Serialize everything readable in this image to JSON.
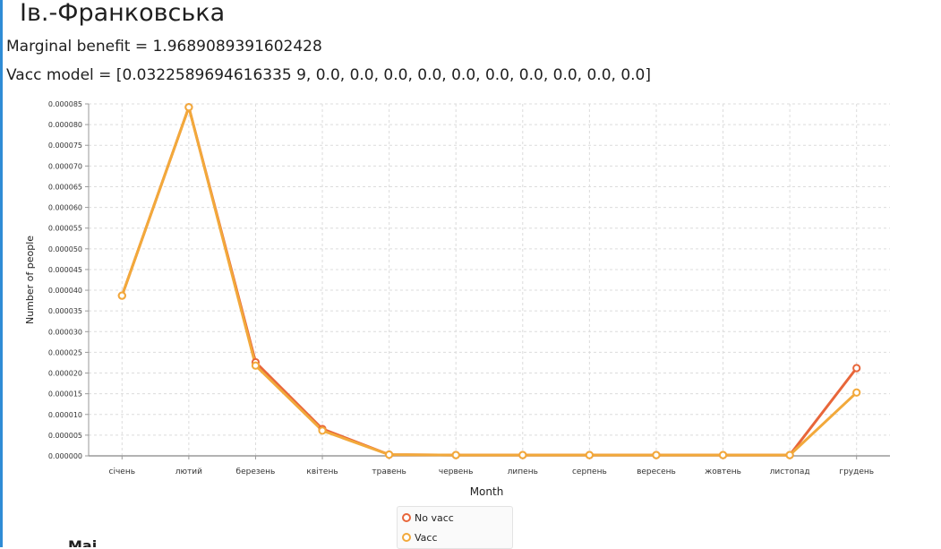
{
  "page": {
    "title": "Ів.-Франковська",
    "marginal_benefit": "Marginal benefit = 1.9689089391602428",
    "vacc_model": "Vacc model = [0.0322589694616335 9, 0.0, 0.0, 0.0, 0.0, 0.0, 0.0, 0.0, 0.0, 0.0, 0.0]",
    "bottom_text": "Mai"
  },
  "chart_data": {
    "type": "line",
    "title": "",
    "xlabel": "Month",
    "ylabel": "Number of people",
    "categories": [
      "січень",
      "лютий",
      "березень",
      "квітень",
      "травень",
      "червень",
      "липень",
      "серпень",
      "вересень",
      "жовтень",
      "листопад",
      "грудень"
    ],
    "ylim": [
      0,
      8.5e-05
    ],
    "yticks": [
      "0.000000",
      "0.000005",
      "0.000010",
      "0.000015",
      "0.000020",
      "0.000025",
      "0.000030",
      "0.000035",
      "0.000040",
      "0.000045",
      "0.000050",
      "0.000055",
      "0.000060",
      "0.000065",
      "0.000070",
      "0.000075",
      "0.000080",
      "0.000085"
    ],
    "grid": true,
    "legend_position": "bottom",
    "series": [
      {
        "name": "No vacc",
        "color": "#e8663a",
        "values": [
          3.87e-05,
          8.42e-05,
          2.26e-05,
          6.5e-06,
          3e-07,
          2e-07,
          2e-07,
          2e-07,
          2e-07,
          2e-07,
          2e-07,
          2.12e-05
        ]
      },
      {
        "name": "Vacc",
        "color": "#f2a93b",
        "values": [
          3.87e-05,
          8.42e-05,
          2.18e-05,
          6.1e-06,
          3e-07,
          2e-07,
          2e-07,
          2e-07,
          2e-07,
          2e-07,
          2e-07,
          1.53e-05
        ]
      }
    ]
  }
}
